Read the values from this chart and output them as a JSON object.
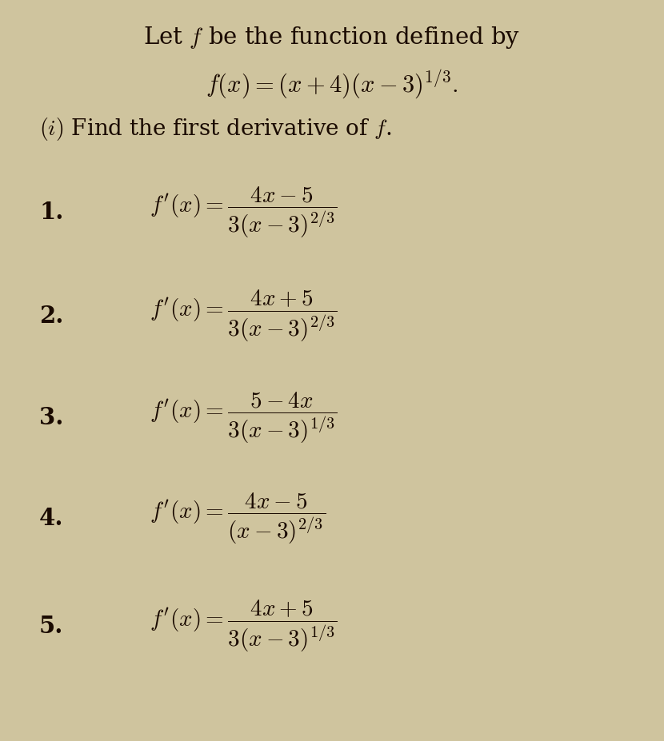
{
  "background_color": "#cfc49e",
  "text_color": "#1a0a00",
  "figsize": [
    8.3,
    9.27
  ],
  "dpi": 100,
  "title_line1": "Let $f$ be the function defined by",
  "title_line2": "$f(x) = (x+4)(x-3)^{1/3}.$",
  "subtitle": "$(i)$ Find the first derivative of $f$.",
  "items": [
    {
      "number": "1.",
      "expr": "$f'(x) = \\dfrac{4x-5}{3(x-3)^{2/3}}$"
    },
    {
      "number": "2.",
      "expr": "$f'(x) = \\dfrac{4x+5}{3(x-3)^{2/3}}$"
    },
    {
      "number": "3.",
      "expr": "$f'(x) = \\dfrac{5-4x}{3(x-3)^{1/3}}$"
    },
    {
      "number": "4.",
      "expr": "$f'(x) = \\dfrac{4x-5}{(x-3)^{2/3}}$"
    },
    {
      "number": "5.",
      "expr": "$f'(x) = \\dfrac{4x+5}{3(x-3)^{1/3}}$"
    }
  ]
}
